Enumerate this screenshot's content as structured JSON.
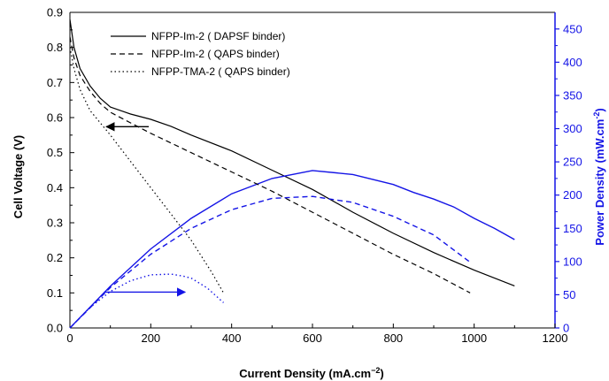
{
  "chart_data": {
    "type": "line",
    "xlabel": "Current Density (mA.cm",
    "xlabel_sup": "−2",
    "xlabel_close": ")",
    "ylabel": "Cell Voltage (V)",
    "y2label": "Power Density (mW.cm",
    "y2label_sup": "-2",
    "y2label_close": ")",
    "xlim": [
      0,
      1200
    ],
    "ylim": [
      0,
      0.9
    ],
    "y2lim": [
      0,
      475
    ],
    "xticks": [
      "0",
      "200",
      "400",
      "600",
      "800",
      "1000",
      "1200"
    ],
    "yticks": [
      "0.0",
      "0.1",
      "0.2",
      "0.3",
      "0.4",
      "0.5",
      "0.6",
      "0.7",
      "0.8",
      "0.9"
    ],
    "y2ticks": [
      "0",
      "50",
      "100",
      "150",
      "200",
      "250",
      "300",
      "350",
      "400",
      "450"
    ],
    "grid": false,
    "legend_position": "top-left",
    "colors": {
      "voltage": "#000000",
      "power": "#1414e6"
    },
    "series": [
      {
        "name": "NFPP-Im-2 ( DAPSF binder)",
        "style": "solid",
        "voltage": {
          "x": [
            0,
            10,
            25,
            50,
            75,
            100,
            150,
            200,
            250,
            300,
            400,
            500,
            600,
            700,
            800,
            900,
            1000,
            1100
          ],
          "y": [
            0.88,
            0.8,
            0.74,
            0.69,
            0.655,
            0.63,
            0.61,
            0.595,
            0.575,
            0.55,
            0.505,
            0.45,
            0.395,
            0.33,
            0.27,
            0.215,
            0.165,
            0.12
          ]
        },
        "power": {
          "x": [
            0,
            100,
            200,
            300,
            400,
            500,
            600,
            700,
            800,
            850,
            900,
            950,
            1000,
            1050,
            1100
          ],
          "y": [
            0,
            63,
            119,
            165,
            202,
            225,
            237,
            231,
            216,
            204,
            194,
            182,
            165,
            150,
            133
          ]
        }
      },
      {
        "name": "NFPP-Im-2 ( QAPS binder)",
        "style": "dashed",
        "voltage": {
          "x": [
            0,
            10,
            25,
            50,
            75,
            100,
            150,
            200,
            300,
            400,
            500,
            600,
            700,
            800,
            900,
            990
          ],
          "y": [
            0.83,
            0.77,
            0.72,
            0.675,
            0.64,
            0.615,
            0.585,
            0.555,
            0.5,
            0.445,
            0.39,
            0.33,
            0.27,
            0.21,
            0.155,
            0.1
          ]
        },
        "power": {
          "x": [
            0,
            100,
            200,
            300,
            400,
            500,
            600,
            700,
            800,
            900,
            990
          ],
          "y": [
            0,
            61,
            111,
            150,
            178,
            195,
            198,
            189,
            168,
            140,
            99
          ]
        }
      },
      {
        "name": "NFPP-TMA-2 ( QAPS binder)",
        "style": "dotted",
        "voltage": {
          "x": [
            0,
            10,
            25,
            50,
            100,
            150,
            200,
            250,
            300,
            350,
            380
          ],
          "y": [
            0.8,
            0.74,
            0.68,
            0.62,
            0.55,
            0.475,
            0.4,
            0.325,
            0.25,
            0.16,
            0.1
          ]
        },
        "power": {
          "x": [
            0,
            50,
            100,
            150,
            200,
            250,
            280,
            300,
            340,
            380
          ],
          "y": [
            0,
            31,
            55,
            71,
            80,
            81,
            78,
            75,
            60,
            38
          ]
        }
      }
    ],
    "annotations": [
      {
        "type": "arrow",
        "from": [
          195,
          0.574
        ],
        "to": [
          90,
          0.574
        ],
        "axis": "left",
        "color": "#000000"
      },
      {
        "type": "arrow",
        "from": [
          85,
          54
        ],
        "to": [
          285,
          54
        ],
        "axis": "right",
        "color": "#1414e6"
      }
    ]
  }
}
